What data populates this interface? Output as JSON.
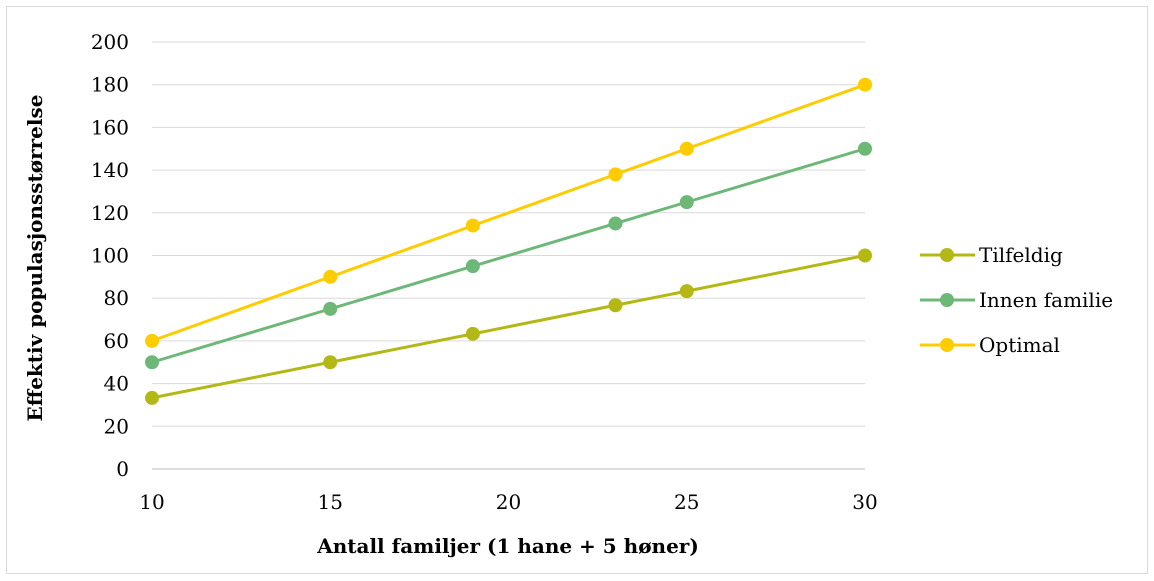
{
  "chart_data": {
    "type": "line",
    "x": [
      10,
      15,
      19,
      23,
      25,
      30
    ],
    "x_ticks": [
      "10",
      "15",
      "20",
      "25",
      "30"
    ],
    "y_ticks": [
      "0",
      "20",
      "40",
      "60",
      "80",
      "100",
      "120",
      "140",
      "160",
      "180",
      "200"
    ],
    "xlabel": "Antall familjer (1 hane + 5 høner)",
    "ylabel": "Effektiv populasjonsstørrelse",
    "xlim": [
      10,
      30
    ],
    "ylim": [
      0,
      200
    ],
    "grid": "horizontal",
    "legend_position": "right",
    "series": [
      {
        "name": "Tilfeldig",
        "color": "#b4b814",
        "values": [
          33.3,
          50,
          63.3,
          76.7,
          83.3,
          100
        ]
      },
      {
        "name": "Innen familie",
        "color": "#6db877",
        "values": [
          50,
          75,
          95,
          115,
          125,
          150
        ]
      },
      {
        "name": "Optimal",
        "color": "#ffcc00",
        "values": [
          60,
          90,
          114,
          138,
          150,
          180
        ]
      }
    ]
  }
}
